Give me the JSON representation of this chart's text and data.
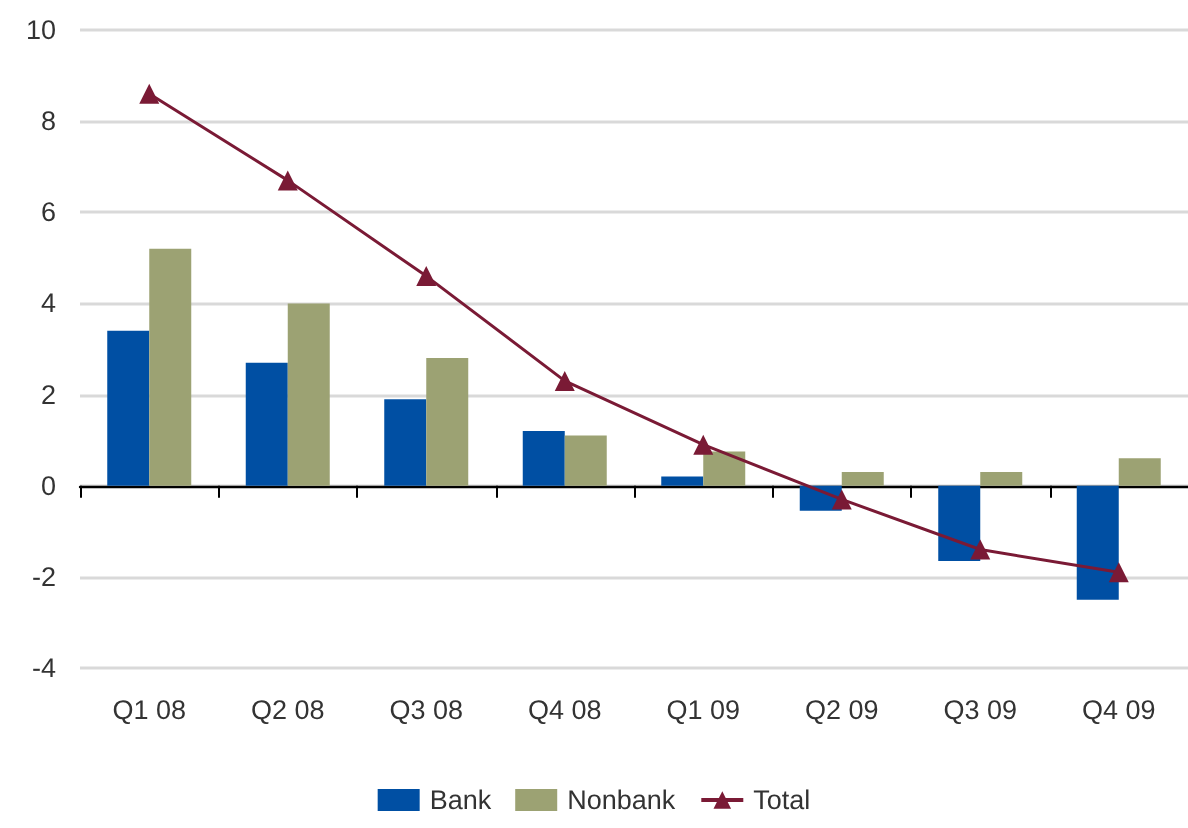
{
  "chart_data": {
    "type": "bar",
    "categories": [
      "Q1 08",
      "Q2 08",
      "Q3 08",
      "Q4 08",
      "Q1 09",
      "Q2 09",
      "Q3 09",
      "Q4 09"
    ],
    "series": [
      {
        "name": "Bank",
        "type": "bar",
        "color": "#004fa3",
        "values": [
          3.4,
          2.7,
          1.9,
          1.2,
          0.2,
          -0.55,
          -1.65,
          -2.5
        ]
      },
      {
        "name": "Nonbank",
        "type": "bar",
        "color": "#9ca273",
        "values": [
          5.2,
          4.0,
          2.8,
          1.1,
          0.75,
          0.3,
          0.3,
          0.6
        ]
      },
      {
        "name": "Total",
        "type": "line",
        "color": "#7a1a35",
        "values": [
          8.6,
          6.7,
          4.6,
          2.3,
          0.9,
          -0.3,
          -1.4,
          -1.9
        ]
      }
    ],
    "ylim": [
      -4,
      10
    ],
    "yticks": [
      -4,
      -2,
      0,
      2,
      4,
      6,
      8,
      10
    ],
    "grid": "y",
    "legend": "bottom",
    "marker": "triangle"
  }
}
